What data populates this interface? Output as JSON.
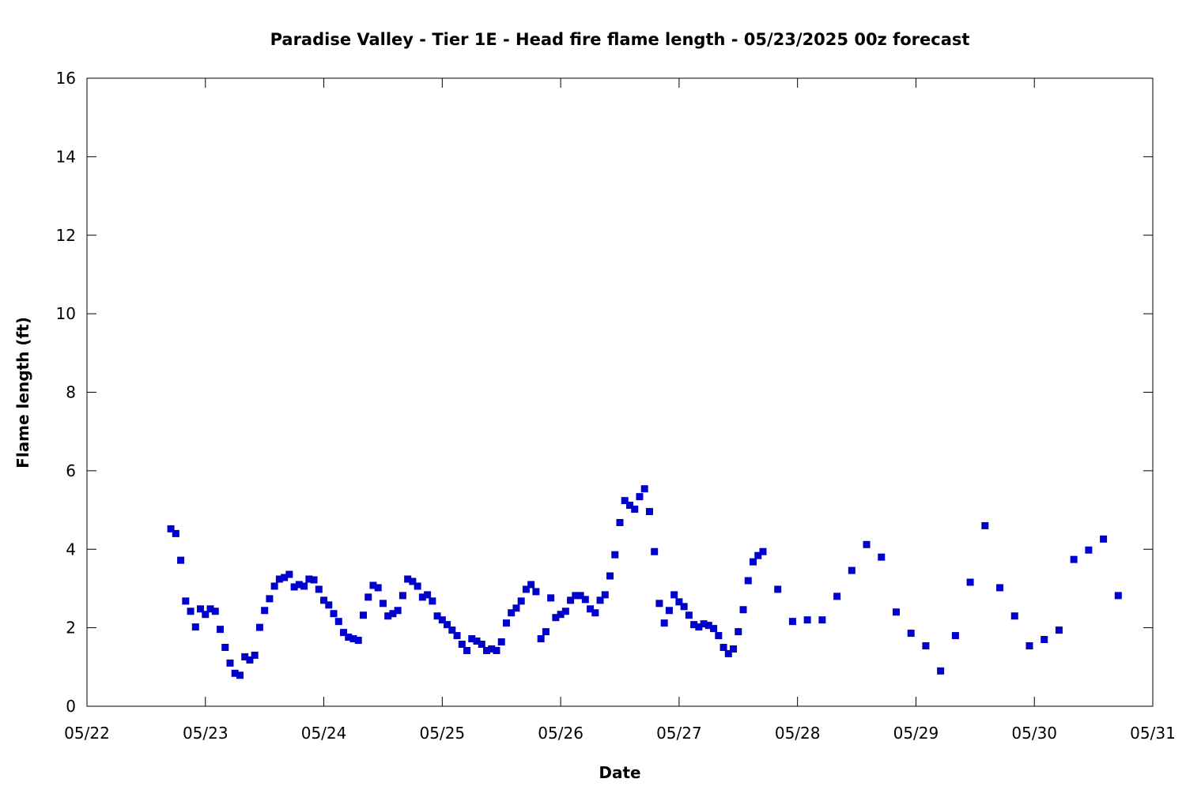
{
  "chart_data": {
    "type": "scatter",
    "title": "Paradise Valley - Tier 1E - Head fire flame length - 05/23/2025 00z forecast",
    "xlabel": "Date",
    "ylabel": "Flame length (ft)",
    "x_tick_labels": [
      "05/22",
      "05/23",
      "05/24",
      "05/25",
      "05/26",
      "05/27",
      "05/28",
      "05/29",
      "05/30",
      "05/31"
    ],
    "y_ticks": [
      0,
      2,
      4,
      6,
      8,
      10,
      12,
      14,
      16
    ],
    "xlim": [
      "2025-05-22 00:00",
      "2025-05-31 00:00"
    ],
    "ylim": [
      0,
      16
    ],
    "grid": false,
    "legend": "none",
    "marker_color": "#0000cc",
    "series": [
      {
        "x": [
          "2025-05-22 17:00",
          "2025-05-22 18:00",
          "2025-05-22 19:00",
          "2025-05-22 20:00",
          "2025-05-22 21:00",
          "2025-05-22 22:00",
          "2025-05-22 23:00",
          "2025-05-23 00:00",
          "2025-05-23 01:00",
          "2025-05-23 02:00",
          "2025-05-23 03:00",
          "2025-05-23 04:00",
          "2025-05-23 05:00",
          "2025-05-23 06:00",
          "2025-05-23 07:00",
          "2025-05-23 08:00",
          "2025-05-23 09:00",
          "2025-05-23 10:00",
          "2025-05-23 11:00",
          "2025-05-23 12:00",
          "2025-05-23 13:00",
          "2025-05-23 14:00",
          "2025-05-23 15:00",
          "2025-05-23 16:00",
          "2025-05-23 17:00",
          "2025-05-23 18:00",
          "2025-05-23 19:00",
          "2025-05-23 20:00",
          "2025-05-23 21:00",
          "2025-05-23 22:00",
          "2025-05-23 23:00",
          "2025-05-24 00:00",
          "2025-05-24 01:00",
          "2025-05-24 02:00",
          "2025-05-24 03:00",
          "2025-05-24 04:00",
          "2025-05-24 05:00",
          "2025-05-24 06:00",
          "2025-05-24 07:00",
          "2025-05-24 08:00",
          "2025-05-24 09:00",
          "2025-05-24 10:00",
          "2025-05-24 11:00",
          "2025-05-24 12:00",
          "2025-05-24 13:00",
          "2025-05-24 14:00",
          "2025-05-24 15:00",
          "2025-05-24 16:00",
          "2025-05-24 17:00",
          "2025-05-24 18:00",
          "2025-05-24 19:00",
          "2025-05-24 20:00",
          "2025-05-24 21:00",
          "2025-05-24 22:00",
          "2025-05-24 23:00",
          "2025-05-25 00:00",
          "2025-05-25 01:00",
          "2025-05-25 02:00",
          "2025-05-25 03:00",
          "2025-05-25 04:00",
          "2025-05-25 05:00",
          "2025-05-25 06:00",
          "2025-05-25 07:00",
          "2025-05-25 08:00",
          "2025-05-25 09:00",
          "2025-05-25 10:00",
          "2025-05-25 11:00",
          "2025-05-25 12:00",
          "2025-05-25 13:00",
          "2025-05-25 14:00",
          "2025-05-25 15:00",
          "2025-05-25 16:00",
          "2025-05-25 17:00",
          "2025-05-25 18:00",
          "2025-05-25 19:00",
          "2025-05-25 20:00",
          "2025-05-25 21:00",
          "2025-05-25 22:00",
          "2025-05-25 23:00",
          "2025-05-26 00:00",
          "2025-05-26 01:00",
          "2025-05-26 02:00",
          "2025-05-26 03:00",
          "2025-05-26 04:00",
          "2025-05-26 05:00",
          "2025-05-26 06:00",
          "2025-05-26 07:00",
          "2025-05-26 08:00",
          "2025-05-26 09:00",
          "2025-05-26 10:00",
          "2025-05-26 11:00",
          "2025-05-26 12:00",
          "2025-05-26 13:00",
          "2025-05-26 14:00",
          "2025-05-26 15:00",
          "2025-05-26 16:00",
          "2025-05-26 17:00",
          "2025-05-26 18:00",
          "2025-05-26 19:00",
          "2025-05-26 20:00",
          "2025-05-26 21:00",
          "2025-05-26 22:00",
          "2025-05-26 23:00",
          "2025-05-27 00:00",
          "2025-05-27 01:00",
          "2025-05-27 02:00",
          "2025-05-27 03:00",
          "2025-05-27 04:00",
          "2025-05-27 05:00",
          "2025-05-27 06:00",
          "2025-05-27 07:00",
          "2025-05-27 08:00",
          "2025-05-27 09:00",
          "2025-05-27 10:00",
          "2025-05-27 11:00",
          "2025-05-27 12:00",
          "2025-05-27 13:00",
          "2025-05-27 14:00",
          "2025-05-27 15:00",
          "2025-05-27 16:00",
          "2025-05-27 17:00",
          "2025-05-27 20:00",
          "2025-05-27 23:00",
          "2025-05-28 02:00",
          "2025-05-28 05:00",
          "2025-05-28 08:00",
          "2025-05-28 11:00",
          "2025-05-28 14:00",
          "2025-05-28 17:00",
          "2025-05-28 20:00",
          "2025-05-28 23:00",
          "2025-05-29 02:00",
          "2025-05-29 05:00",
          "2025-05-29 08:00",
          "2025-05-29 11:00",
          "2025-05-29 14:00",
          "2025-05-29 17:00",
          "2025-05-29 20:00",
          "2025-05-29 23:00",
          "2025-05-30 02:00",
          "2025-05-30 05:00",
          "2025-05-30 08:00",
          "2025-05-30 11:00",
          "2025-05-30 14:00",
          "2025-05-30 17:00"
        ],
        "y": [
          4.52,
          4.4,
          3.72,
          2.68,
          2.42,
          2.02,
          2.48,
          2.34,
          2.48,
          2.42,
          1.96,
          1.5,
          1.1,
          0.84,
          0.79,
          1.26,
          1.18,
          1.3,
          2.01,
          2.44,
          2.74,
          3.06,
          3.24,
          3.28,
          3.36,
          3.04,
          3.1,
          3.06,
          3.24,
          3.22,
          2.98,
          2.7,
          2.58,
          2.36,
          2.16,
          1.88,
          1.76,
          1.72,
          1.68,
          2.32,
          2.78,
          3.08,
          3.02,
          2.62,
          2.3,
          2.36,
          2.44,
          2.82,
          3.24,
          3.18,
          3.06,
          2.78,
          2.84,
          2.68,
          2.3,
          2.2,
          2.08,
          1.94,
          1.8,
          1.58,
          1.42,
          1.72,
          1.66,
          1.58,
          1.42,
          1.46,
          1.42,
          1.64,
          2.12,
          2.38,
          2.5,
          2.68,
          2.98,
          3.1,
          2.92,
          1.72,
          1.9,
          2.76,
          2.26,
          2.34,
          2.42,
          2.7,
          2.82,
          2.82,
          2.72,
          2.48,
          2.38,
          2.7,
          2.84,
          3.32,
          3.86,
          4.68,
          5.24,
          5.12,
          5.02,
          5.34,
          5.54,
          4.96,
          3.94,
          2.62,
          2.12,
          2.44,
          2.84,
          2.66,
          2.54,
          2.32,
          2.08,
          2.02,
          2.1,
          2.06,
          1.98,
          1.8,
          1.5,
          1.34,
          1.46,
          1.9,
          2.46,
          3.2,
          3.68,
          3.84,
          3.94,
          2.98,
          2.16,
          2.2,
          2.2,
          2.8,
          3.46,
          4.12,
          3.8,
          2.4,
          1.86,
          1.54,
          0.9,
          1.8,
          3.16,
          4.6,
          3.02,
          2.3,
          1.54,
          1.7,
          1.94,
          3.74,
          3.98,
          4.26,
          2.82
        ]
      }
    ]
  }
}
